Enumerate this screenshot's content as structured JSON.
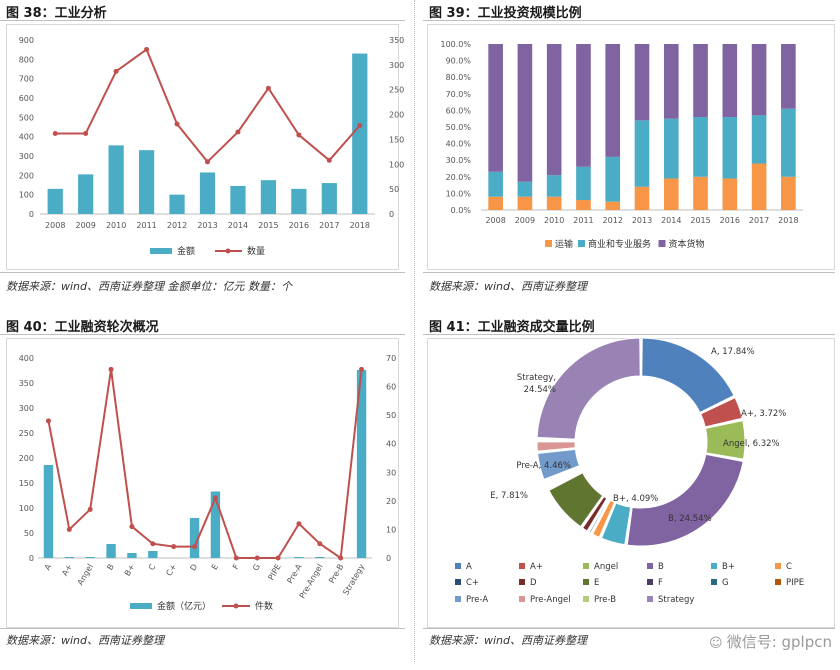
{
  "panels": {
    "p38": {
      "title": "图 38：工业分析",
      "source": "数据来源：wind、西南证券整理 金额单位：亿元 数量：个"
    },
    "p39": {
      "title": "图 39：工业投资规模比例",
      "source": "数据来源：wind、西南证券整理"
    },
    "p40": {
      "title": "图 40：工业融资轮次概况",
      "source": "数据来源：wind、西南证券整理"
    },
    "p41": {
      "title": "图 41：工业融资成交量比例",
      "source": "数据来源：wind、西南证券整理"
    }
  },
  "watermark": "微信号: gplpcn",
  "colors": {
    "teal": "#4bacc6",
    "red": "#c0504d",
    "orange": "#f79646",
    "purple": "#8064a2"
  },
  "chart_data": [
    {
      "id": "c38",
      "type": "bar",
      "categories": [
        "2008",
        "2009",
        "2010",
        "2011",
        "2012",
        "2013",
        "2014",
        "2015",
        "2016",
        "2017",
        "2018"
      ],
      "series": [
        {
          "name": "金额",
          "type": "bar",
          "axis": "left",
          "values": [
            130,
            205,
            355,
            330,
            100,
            215,
            145,
            175,
            130,
            160,
            830
          ]
        },
        {
          "name": "数量",
          "type": "line",
          "axis": "right",
          "values": [
            162,
            162,
            287,
            331,
            181,
            105,
            165,
            253,
            159,
            108,
            178
          ]
        }
      ],
      "yleft": {
        "min": 0,
        "max": 900,
        "step": 100
      },
      "yright": {
        "min": 0,
        "max": 350,
        "step": 50
      },
      "legend": "bottom"
    },
    {
      "id": "c39",
      "type": "bar",
      "stacked": true,
      "categories": [
        "2008",
        "2009",
        "2010",
        "2011",
        "2012",
        "2013",
        "2014",
        "2015",
        "2016",
        "2017",
        "2018"
      ],
      "series": [
        {
          "name": "运输",
          "values": [
            8,
            8,
            8,
            6,
            5,
            14,
            19,
            20,
            19,
            28,
            20
          ]
        },
        {
          "name": "商业和专业服务",
          "values": [
            15,
            9,
            13,
            20,
            27,
            40,
            36,
            36,
            37,
            29,
            41
          ]
        },
        {
          "name": "资本货物",
          "values": [
            77,
            83,
            79,
            74,
            68,
            46,
            45,
            44,
            44,
            43,
            39
          ]
        }
      ],
      "ylim": [
        0,
        100
      ],
      "yticks": [
        "0.0%",
        "10.0%",
        "20.0%",
        "30.0%",
        "40.0%",
        "50.0%",
        "60.0%",
        "70.0%",
        "80.0%",
        "90.0%",
        "100.0%"
      ],
      "legend": "bottom"
    },
    {
      "id": "c40",
      "type": "bar",
      "categories": [
        "A",
        "A+",
        "Angel",
        "B",
        "B+",
        "C",
        "C+",
        "D",
        "E",
        "F",
        "G",
        "PIPE",
        "Pre-A",
        "Pre-Angel",
        "Pre-B",
        "Strategy"
      ],
      "series": [
        {
          "name": "金额（亿元）",
          "type": "bar",
          "axis": "left",
          "values": [
            186,
            2,
            2,
            28,
            10,
            14,
            0,
            80,
            133,
            0,
            0,
            0,
            2,
            2,
            0,
            376
          ]
        },
        {
          "name": "件数",
          "type": "line",
          "axis": "right",
          "values": [
            48,
            10,
            17,
            66,
            11,
            5,
            4,
            4,
            21,
            0,
            0,
            0,
            12,
            5,
            0,
            66
          ]
        }
      ],
      "yleft": {
        "min": 0,
        "max": 400,
        "step": 50
      },
      "yright": {
        "min": 0,
        "max": 70,
        "step": 10
      },
      "legend": "bottom"
    },
    {
      "id": "c41",
      "type": "pie",
      "donut": true,
      "slices": [
        {
          "name": "A",
          "value": 17.84,
          "label": "A, 17.84%"
        },
        {
          "name": "A+",
          "value": 3.72,
          "label": "A+, 3.72%"
        },
        {
          "name": "Angel",
          "value": 6.32,
          "label": "Angel, 6.32%"
        },
        {
          "name": "B",
          "value": 24.54,
          "label": "B, 24.54%"
        },
        {
          "name": "B+",
          "value": 4.09,
          "label": "B+, 4.09%"
        },
        {
          "name": "C",
          "value": 1.5,
          "label": ""
        },
        {
          "name": "C+",
          "value": 0.6,
          "label": ""
        },
        {
          "name": "D",
          "value": 1.2,
          "label": ""
        },
        {
          "name": "E",
          "value": 7.81,
          "label": "E, 7.81%"
        },
        {
          "name": "F",
          "value": 0.5,
          "label": ""
        },
        {
          "name": "G",
          "value": 0.5,
          "label": ""
        },
        {
          "name": "PIPE",
          "value": 0.5,
          "label": ""
        },
        {
          "name": "Pre-A",
          "value": 4.46,
          "label": "Pre-A, 4.46%"
        },
        {
          "name": "Pre-Angel",
          "value": 1.8,
          "label": ""
        },
        {
          "name": "Pre-B",
          "value": 0.3,
          "label": ""
        },
        {
          "name": "Strategy",
          "value": 24.54,
          "label": "Strategy, 24.54%"
        }
      ],
      "slice_colors": [
        "#4f81bd",
        "#c0504d",
        "#9bbb59",
        "#8064a2",
        "#4bacc6",
        "#f79646",
        "#2c4d75",
        "#772c2a",
        "#5f7530",
        "#4d3b62",
        "#276a7c",
        "#b65708",
        "#729aca",
        "#d99694",
        "#b4cd7d",
        "#9983b5"
      ],
      "legend": "bottom"
    }
  ]
}
